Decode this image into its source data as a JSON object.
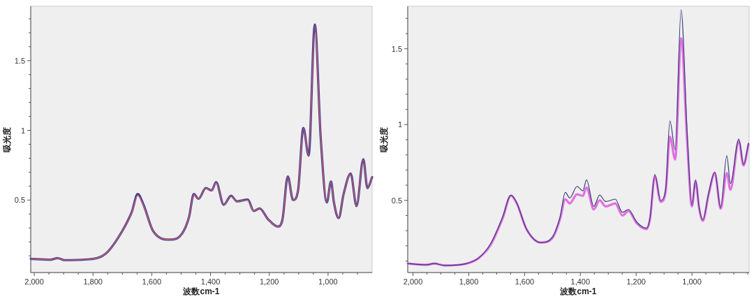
{
  "chart_data": [
    {
      "type": "line",
      "xlabel": "波数cm-1",
      "ylabel": "吸光度",
      "xlim": [
        2012,
        850
      ],
      "ylim": [
        -0.02,
        1.89
      ],
      "xticks": [
        {
          "value": 2000,
          "label": "2,000"
        },
        {
          "value": 1950,
          "label": null
        },
        {
          "value": 1900,
          "label": null
        },
        {
          "value": 1850,
          "label": null
        },
        {
          "value": 1800,
          "label": "1,800"
        },
        {
          "value": 1750,
          "label": null
        },
        {
          "value": 1700,
          "label": null
        },
        {
          "value": 1650,
          "label": null
        },
        {
          "value": 1600,
          "label": "1,600"
        },
        {
          "value": 1550,
          "label": null
        },
        {
          "value": 1500,
          "label": null
        },
        {
          "value": 1450,
          "label": null
        },
        {
          "value": 1400,
          "label": "1,400"
        },
        {
          "value": 1350,
          "label": null
        },
        {
          "value": 1300,
          "label": null
        },
        {
          "value": 1250,
          "label": null
        },
        {
          "value": 1200,
          "label": "1,200"
        },
        {
          "value": 1150,
          "label": null
        },
        {
          "value": 1100,
          "label": null
        },
        {
          "value": 1050,
          "label": null
        },
        {
          "value": 1000,
          "label": "1,000"
        },
        {
          "value": 950,
          "label": null
        },
        {
          "value": 900,
          "label": null
        }
      ],
      "yticks": [
        {
          "value": 0.1,
          "label": null
        },
        {
          "value": 0.2,
          "label": null
        },
        {
          "value": 0.3,
          "label": null
        },
        {
          "value": 0.4,
          "label": null
        },
        0.5,
        {
          "value": 0.6,
          "label": null
        },
        {
          "value": 0.7,
          "label": null
        },
        {
          "value": 0.8,
          "label": null
        },
        {
          "value": 0.9,
          "label": null
        },
        1,
        {
          "value": 1.1,
          "label": null
        },
        {
          "value": 1.2,
          "label": null
        },
        {
          "value": 1.3,
          "label": null
        },
        {
          "value": 1.4,
          "label": null
        },
        1.5,
        {
          "value": 1.6,
          "label": null
        },
        {
          "value": 1.7,
          "label": null
        },
        {
          "value": 1.8,
          "label": null
        }
      ],
      "x": [
        2012,
        1945,
        1921,
        1897,
        1823,
        1782,
        1750,
        1701,
        1668,
        1648,
        1628,
        1595,
        1538,
        1497,
        1473,
        1457,
        1441,
        1416,
        1396,
        1381,
        1355,
        1330,
        1310,
        1273,
        1253,
        1233,
        1204,
        1171,
        1155,
        1137,
        1119,
        1102,
        1084,
        1066,
        1045,
        1025,
        1004,
        990,
        980,
        964,
        947,
        923,
        903,
        880,
        866,
        850
      ],
      "series": [
        {
          "color": "#3a3f9a",
          "values": [
            0.078,
            0.072,
            0.083,
            0.069,
            0.074,
            0.086,
            0.129,
            0.276,
            0.414,
            0.543,
            0.466,
            0.276,
            0.216,
            0.259,
            0.379,
            0.543,
            0.509,
            0.586,
            0.569,
            0.629,
            0.466,
            0.531,
            0.491,
            0.503,
            0.422,
            0.44,
            0.362,
            0.31,
            0.362,
            0.669,
            0.5,
            0.569,
            1.017,
            0.819,
            1.759,
            0.948,
            0.483,
            0.634,
            0.483,
            0.371,
            0.543,
            0.69,
            0.457,
            0.793,
            0.586,
            0.664
          ]
        },
        {
          "color": "#e0605a",
          "values": [
            0.078,
            0.072,
            0.083,
            0.069,
            0.074,
            0.086,
            0.129,
            0.276,
            0.41,
            0.533,
            0.46,
            0.276,
            0.216,
            0.259,
            0.379,
            0.54,
            0.509,
            0.583,
            0.569,
            0.626,
            0.466,
            0.529,
            0.491,
            0.5,
            0.422,
            0.44,
            0.362,
            0.31,
            0.362,
            0.667,
            0.5,
            0.569,
            1.012,
            0.819,
            1.75,
            0.948,
            0.483,
            0.632,
            0.483,
            0.371,
            0.543,
            0.688,
            0.457,
            0.79,
            0.586,
            0.664
          ]
        }
      ]
    },
    {
      "type": "line",
      "xlabel": "波数cm-1",
      "ylabel": "吸光度",
      "xlim": [
        2019,
        795
      ],
      "ylim": [
        0.024,
        1.78
      ],
      "xticks": [
        {
          "value": 2000,
          "label": "2,000"
        },
        {
          "value": 1950,
          "label": null
        },
        {
          "value": 1900,
          "label": null
        },
        {
          "value": 1850,
          "label": null
        },
        {
          "value": 1800,
          "label": "1,800"
        },
        {
          "value": 1750,
          "label": null
        },
        {
          "value": 1700,
          "label": null
        },
        {
          "value": 1650,
          "label": null
        },
        {
          "value": 1600,
          "label": "1,600"
        },
        {
          "value": 1550,
          "label": null
        },
        {
          "value": 1500,
          "label": null
        },
        {
          "value": 1450,
          "label": null
        },
        {
          "value": 1400,
          "label": "1,400"
        },
        {
          "value": 1350,
          "label": null
        },
        {
          "value": 1300,
          "label": null
        },
        {
          "value": 1250,
          "label": null
        },
        {
          "value": 1200,
          "label": "1,200"
        },
        {
          "value": 1150,
          "label": null
        },
        {
          "value": 1100,
          "label": null
        },
        {
          "value": 1050,
          "label": null
        },
        {
          "value": 1000,
          "label": "1,000"
        },
        {
          "value": 950,
          "label": null
        },
        {
          "value": 900,
          "label": null
        },
        {
          "value": 850,
          "label": null
        },
        {
          "value": 800,
          "label": null
        }
      ],
      "yticks": [
        {
          "value": 0.1,
          "label": null
        },
        {
          "value": 0.2,
          "label": null
        },
        {
          "value": 0.3,
          "label": null
        },
        {
          "value": 0.4,
          "label": null
        },
        0.5,
        {
          "value": 0.6,
          "label": null
        },
        {
          "value": 0.7,
          "label": null
        },
        {
          "value": 0.8,
          "label": null
        },
        {
          "value": 0.9,
          "label": null
        },
        1,
        {
          "value": 1.1,
          "label": null
        },
        {
          "value": 1.2,
          "label": null
        },
        {
          "value": 1.3,
          "label": null
        },
        {
          "value": 1.4,
          "label": null
        },
        1.5,
        {
          "value": 1.6,
          "label": null
        },
        {
          "value": 1.7,
          "label": null
        }
      ],
      "x": [
        2019,
        1954,
        1924,
        1886,
        1808,
        1765,
        1722,
        1679,
        1649,
        1628,
        1593,
        1542,
        1499,
        1473,
        1454,
        1438,
        1412,
        1391,
        1378,
        1352,
        1331,
        1309,
        1275,
        1249,
        1228,
        1198,
        1163,
        1150,
        1133,
        1112,
        1094,
        1079,
        1060,
        1039,
        1017,
        1000,
        987,
        974,
        961,
        940,
        918,
        897,
        875,
        862,
        832,
        815,
        797
      ],
      "series": [
        {
          "color": "#e070e0",
          "values": [
            0.083,
            0.075,
            0.083,
            0.071,
            0.083,
            0.119,
            0.205,
            0.38,
            0.53,
            0.48,
            0.31,
            0.222,
            0.255,
            0.375,
            0.508,
            0.48,
            0.54,
            0.53,
            0.585,
            0.44,
            0.5,
            0.46,
            0.48,
            0.4,
            0.43,
            0.35,
            0.31,
            0.38,
            0.66,
            0.49,
            0.56,
            0.92,
            0.77,
            1.57,
            0.88,
            0.46,
            0.625,
            0.445,
            0.365,
            0.54,
            0.68,
            0.445,
            0.68,
            0.57,
            0.89,
            0.73,
            0.87
          ]
        },
        {
          "color": "#3a3f7a",
          "values": [
            0.083,
            0.075,
            0.083,
            0.071,
            0.083,
            0.119,
            0.214,
            0.389,
            0.535,
            0.484,
            0.31,
            0.222,
            0.262,
            0.389,
            0.552,
            0.516,
            0.592,
            0.563,
            0.635,
            0.46,
            0.535,
            0.492,
            0.508,
            0.421,
            0.44,
            0.357,
            0.317,
            0.389,
            0.671,
            0.5,
            0.579,
            1.024,
            0.833,
            1.757,
            0.944,
            0.468,
            0.635,
            0.452,
            0.373,
            0.548,
            0.687,
            0.452,
            0.794,
            0.611,
            0.905,
            0.738,
            0.878
          ]
        }
      ]
    }
  ]
}
